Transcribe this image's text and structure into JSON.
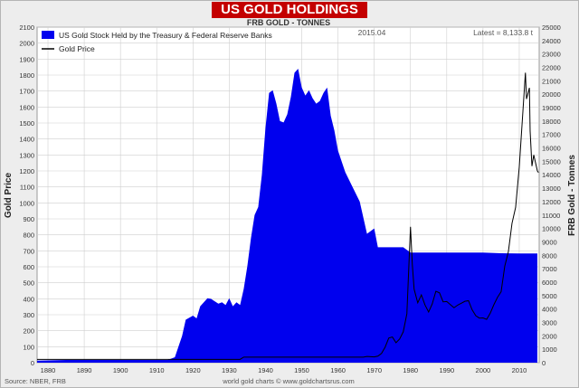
{
  "header": {
    "title": "US GOLD HOLDINGS"
  },
  "footer": {
    "source": "Source: NBER, FRB",
    "credit": "world gold charts © www.goldchartsrus.com"
  },
  "chart_data": {
    "type": "area",
    "title": "US GOLD HOLDINGS",
    "subtitle": "FRB GOLD - TONNES",
    "date_label": "2015.04",
    "latest_label": "Latest = 8,133.8 t",
    "xlabel": "",
    "ylabel_left": "Gold Price",
    "ylabel_right": "FRB Gold - Tonnes",
    "xlim": [
      1877,
      2015.5
    ],
    "ylim_left": [
      0,
      2100
    ],
    "ylim_right": [
      0,
      25000
    ],
    "x_ticks": [
      1880,
      1890,
      1900,
      1910,
      1920,
      1930,
      1940,
      1950,
      1960,
      1970,
      1980,
      1990,
      2000,
      2010
    ],
    "y_ticks_left": [
      0,
      100,
      200,
      300,
      400,
      500,
      600,
      700,
      800,
      900,
      1000,
      1100,
      1200,
      1300,
      1400,
      1500,
      1600,
      1700,
      1800,
      1900,
      2000,
      2100
    ],
    "y_ticks_right": [
      0,
      1000,
      2000,
      3000,
      4000,
      5000,
      6000,
      7000,
      8000,
      9000,
      10000,
      11000,
      12000,
      13000,
      14000,
      15000,
      16000,
      17000,
      18000,
      19000,
      20000,
      21000,
      22000,
      23000,
      24000,
      25000
    ],
    "grid": true,
    "legend_position": "top-left",
    "colors": {
      "area": "#0000ee",
      "line": "#000000",
      "background": "#ffffff",
      "grid": "#cfcfcf"
    },
    "series": [
      {
        "name": "US Gold Stock Held by the Treasury & Federal Reserve Banks",
        "type": "area",
        "axis": "right",
        "x": [
          1877,
          1885,
          1895,
          1905,
          1913,
          1915,
          1917,
          1918,
          1920,
          1921,
          1922,
          1924,
          1925,
          1927,
          1928,
          1929,
          1930,
          1931,
          1932,
          1933,
          1934,
          1935,
          1936,
          1937,
          1938,
          1939,
          1940,
          1941,
          1942,
          1943,
          1944,
          1945,
          1946,
          1947,
          1948,
          1949,
          1950,
          1951,
          1952,
          1953,
          1954,
          1955,
          1956,
          1957,
          1958,
          1959,
          1960,
          1962,
          1964,
          1966,
          1968,
          1970,
          1971,
          1972,
          1974,
          1976,
          1978,
          1980,
          1982,
          1985,
          1990,
          1995,
          2000,
          2005,
          2010,
          2015
        ],
        "values": [
          150,
          200,
          200,
          200,
          200,
          400,
          2000,
          3200,
          3500,
          3300,
          4200,
          4800,
          4750,
          4400,
          4500,
          4300,
          4800,
          4200,
          4500,
          4300,
          5500,
          7200,
          9300,
          11000,
          11600,
          14000,
          17500,
          20100,
          20300,
          19300,
          18000,
          17900,
          18500,
          19800,
          21600,
          21900,
          20500,
          19900,
          20300,
          19700,
          19300,
          19500,
          20100,
          20500,
          18400,
          17300,
          15800,
          14200,
          13100,
          12000,
          9600,
          10000,
          8600,
          8600,
          8600,
          8600,
          8600,
          8200,
          8200,
          8200,
          8200,
          8200,
          8200,
          8150,
          8140,
          8134
        ]
      },
      {
        "name": "Gold Price",
        "type": "line",
        "axis": "left",
        "x": [
          1877,
          1933,
          1934,
          1967,
          1968,
          1970,
          1971,
          1972,
          1973,
          1974,
          1975,
          1976,
          1977,
          1978,
          1979,
          1980,
          1980.5,
          1981,
          1982,
          1983,
          1984,
          1985,
          1986,
          1987,
          1988,
          1989,
          1990,
          1992,
          1993,
          1995,
          1996,
          1997,
          1998,
          1999,
          2000,
          2001,
          2002,
          2003,
          2004,
          2005,
          2006,
          2007,
          2008,
          2009,
          2010,
          2011,
          2011.7,
          2012,
          2012.8,
          2013,
          2013.5,
          2014,
          2014.5,
          2015,
          2015.3
        ],
        "values": [
          20.67,
          20.67,
          35,
          35,
          39,
          36,
          41,
          58,
          97,
          154,
          161,
          125,
          148,
          193,
          306,
          850,
          615,
          460,
          375,
          424,
          361,
          317,
          368,
          447,
          437,
          381,
          383,
          344,
          360,
          384,
          388,
          331,
          294,
          279,
          280,
          271,
          310,
          363,
          409,
          444,
          604,
          695,
          872,
          972,
          1224,
          1570,
          1815,
          1650,
          1720,
          1450,
          1230,
          1300,
          1250,
          1200,
          1190
        ]
      }
    ]
  }
}
